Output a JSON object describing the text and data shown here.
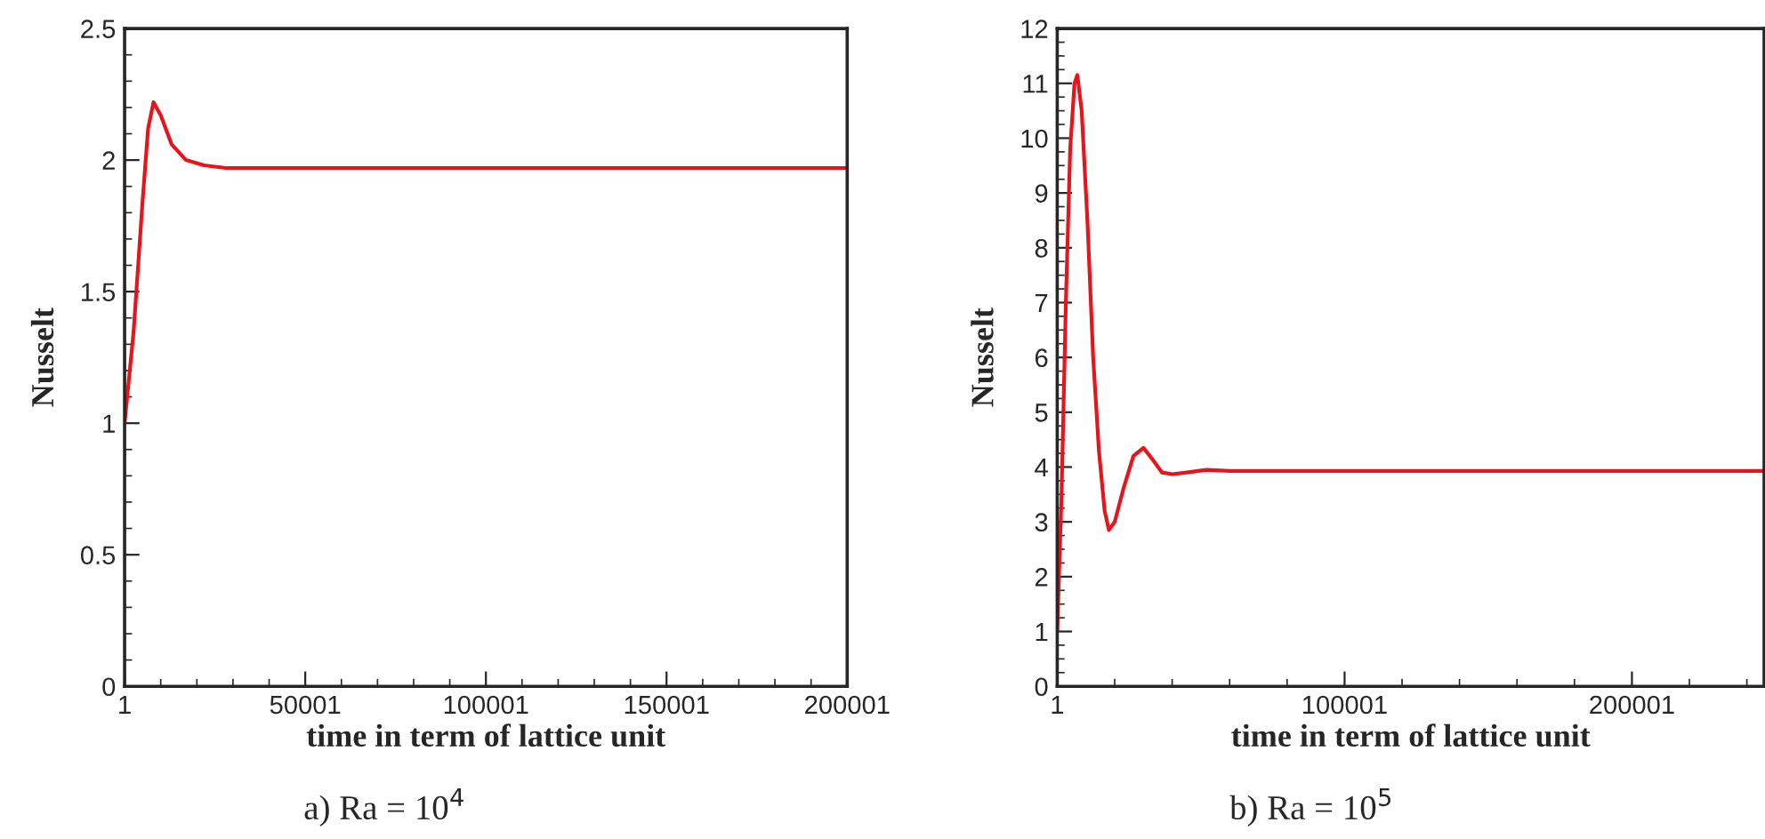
{
  "chart_data": [
    {
      "type": "line",
      "xlabel": "time in term of lattice unit",
      "ylabel": "Nusselt",
      "annotations": [
        "a) Ra = 10$^{4}$"
      ],
      "x": [
        1,
        2500,
        5000,
        6500,
        8000,
        10000,
        13000,
        17000,
        22000,
        28000,
        200001
      ],
      "series": [
        {
          "color": "#e8141c",
          "values": [
            1,
            1.35,
            1.85,
            2.12,
            2.22,
            2.17,
            2.06,
            2.0,
            1.98,
            1.97,
            1.97
          ]
        }
      ],
      "xlim": [
        1,
        200001
      ],
      "xticks": [
        1,
        50001,
        100001,
        150001,
        200001
      ],
      "ylim": [
        0,
        2.5
      ],
      "yticks": [
        0,
        0.5,
        1,
        1.5,
        2,
        2.5
      ],
      "grid": false,
      "legend": false,
      "marker": "none",
      "line_style": "solid"
    },
    {
      "type": "line",
      "xlabel": "time in term of lattice unit",
      "ylabel": "Nusselt",
      "annotations": [
        "b) Ra = 10$^{5}$"
      ],
      "x": [
        1,
        1500,
        3000,
        4500,
        6000,
        7000,
        8500,
        10500,
        12500,
        14500,
        16500,
        18000,
        20000,
        23000,
        26500,
        30000,
        33000,
        36500,
        40000,
        45000,
        52000,
        60000,
        246001
      ],
      "series": [
        {
          "color": "#e8141c",
          "values": [
            1,
            3.5,
            7,
            9.8,
            11,
            11.15,
            10.5,
            8.5,
            6,
            4.3,
            3.2,
            2.85,
            3.0,
            3.6,
            4.2,
            4.35,
            4.15,
            3.9,
            3.87,
            3.9,
            3.95,
            3.93,
            3.93
          ]
        }
      ],
      "xlim": [
        1,
        246001
      ],
      "xticks": [
        1,
        100001,
        200001
      ],
      "ylim": [
        0,
        12
      ],
      "yticks": [
        0,
        1,
        2,
        3,
        4,
        5,
        6,
        7,
        8,
        9,
        10,
        11,
        12
      ],
      "grid": false,
      "legend": false,
      "marker": "none",
      "line_style": "solid"
    }
  ]
}
